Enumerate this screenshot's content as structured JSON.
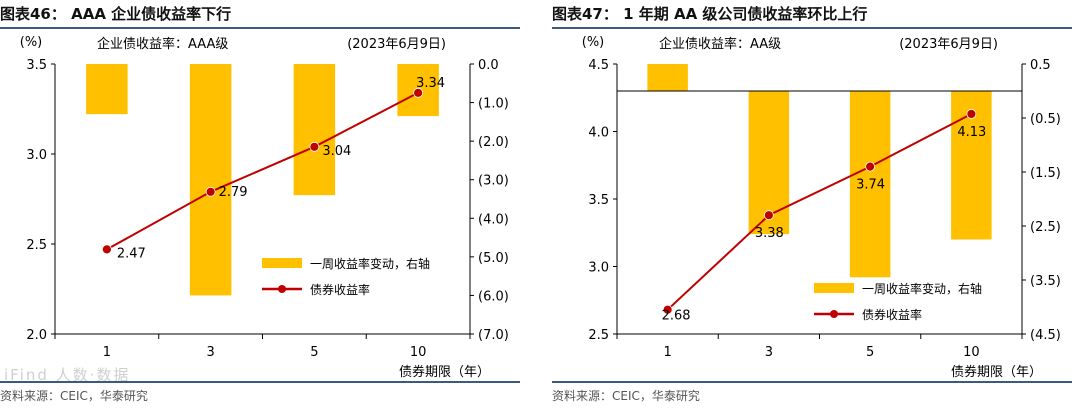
{
  "chart_data": [
    {
      "type": "bar",
      "title": "图表46：  AAA 企业债收益率下行",
      "subtitle": "企业债收益率：AAA级",
      "date_note": "(2023年6月9日)",
      "categories": [
        "1",
        "3",
        "5",
        "10"
      ],
      "xlabel": "债券期限（年）",
      "y_left": {
        "unit": "(%)",
        "ticks": [
          "3.5",
          "3.0",
          "2.5",
          "2.0"
        ],
        "range": [
          2.0,
          3.5
        ]
      },
      "y_right": {
        "ticks": [
          "0.0",
          "(1.0)",
          "(2.0)",
          "(3.0)",
          "(4.0)",
          "(5.0)",
          "(6.0)",
          "(7.0)"
        ],
        "range": [
          -7,
          0
        ]
      },
      "series": [
        {
          "name": "一周收益率变动，右轴",
          "kind": "bar",
          "axis": "right",
          "color": "#FFC000",
          "values": [
            -1.3,
            -6.0,
            -3.4,
            -1.35
          ]
        },
        {
          "name": "债券收益率",
          "kind": "line",
          "axis": "left",
          "color": "#C00000",
          "values": [
            2.47,
            2.79,
            3.04,
            3.34
          ],
          "labels": [
            "2.47",
            "2.79",
            "3.04",
            "3.34"
          ]
        }
      ],
      "source": "资料来源：CEIC，华泰研究",
      "watermark": "iFind 人数·数据"
    },
    {
      "type": "bar",
      "title": "图表47：  1 年期 AA 级公司债收益率环比上行",
      "subtitle": "企业债收益率：AA级",
      "date_note": "(2023年6月9日)",
      "categories": [
        "1",
        "3",
        "5",
        "10"
      ],
      "xlabel": "债券期限（年）",
      "y_left": {
        "unit": "(%)",
        "ticks": [
          "4.5",
          "4.0",
          "3.5",
          "3.0",
          "2.5"
        ],
        "range": [
          2.5,
          4.5
        ]
      },
      "y_right": {
        "ticks": [
          "0.5",
          "(0.5)",
          "(1.5)",
          "(2.5)",
          "(3.5)",
          "(4.5)"
        ],
        "range": [
          -4.5,
          0.5
        ]
      },
      "series": [
        {
          "name": "一周收益率变动，右轴",
          "kind": "bar",
          "axis": "right",
          "color": "#FFC000",
          "values": [
            0.5,
            -2.65,
            -3.45,
            -2.75
          ]
        },
        {
          "name": "债券收益率",
          "kind": "line",
          "axis": "left",
          "color": "#C00000",
          "values": [
            2.68,
            3.38,
            3.74,
            4.13
          ],
          "labels": [
            "2.68",
            "3.38",
            "3.74",
            "4.13"
          ]
        }
      ],
      "source": "资料来源：CEIC，华泰研究"
    }
  ]
}
